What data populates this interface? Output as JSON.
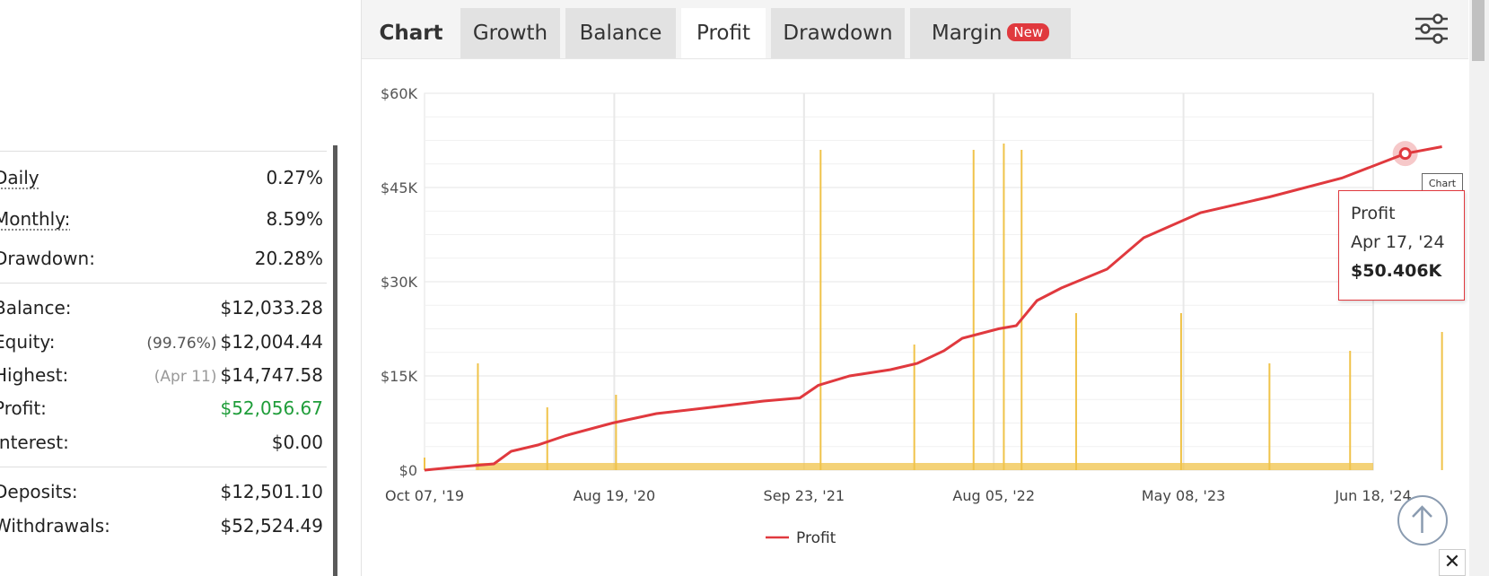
{
  "stats": {
    "rows": [
      {
        "label": "Daily",
        "value": "0.27%"
      },
      {
        "label": "Monthly:",
        "value": "8.59%"
      },
      {
        "label": "Drawdown:",
        "value": "20.28%"
      },
      {
        "label": "Balance:",
        "value": "$12,033.28"
      },
      {
        "label": "Equity:",
        "prefix": "(99.76%)",
        "value": "$12,004.44"
      },
      {
        "label": "Highest:",
        "prefix": "(Apr 11)",
        "value": "$14,747.58"
      },
      {
        "label": "Profit:",
        "value": "$52,056.67"
      },
      {
        "label": "Interest:",
        "value": "$0.00"
      },
      {
        "label": "Deposits:",
        "value": "$12,501.10"
      },
      {
        "label": "Withdrawals:",
        "value": "$52,524.49"
      }
    ],
    "profit_color": "#1f9d3a"
  },
  "tabs": {
    "chart": "Chart",
    "growth": "Growth",
    "balance": "Balance",
    "profit": "Profit",
    "drawdown": "Drawdown",
    "margin": "Margin",
    "margin_badge": "New",
    "active": "Profit"
  },
  "icons": {
    "settings": "sliders-icon",
    "scroll_top": "arrow-up-circle-icon",
    "close": "close-icon"
  },
  "close_glyph": "✕",
  "tooltip": {
    "series": "Profit",
    "date": "Apr 17, '24",
    "value": "$50.406K"
  },
  "mini_tooltip": "Chart",
  "chart_data": {
    "type": "line",
    "x_tick_labels": [
      "Oct 07, '19",
      "Aug 19, '20",
      "Sep 23, '21",
      "Aug 05, '22",
      "May 08, '23",
      "Jun 18, '24"
    ],
    "y_tick_labels": [
      "$0",
      "$15K",
      "$30K",
      "$45K",
      "$60K"
    ],
    "ylim": [
      0,
      60000
    ],
    "legend": [
      "Profit"
    ],
    "legend_placement": "bottom-center",
    "grid": true,
    "colors": {
      "profit_line": "#e0393e",
      "volume_bars": "#f0c34a"
    },
    "series": [
      {
        "name": "Profit",
        "x": [
          "2019-10-07",
          "2019-12-01",
          "2020-02-01",
          "2020-03-01",
          "2020-04-15",
          "2020-06-01",
          "2020-08-19",
          "2020-11-01",
          "2021-02-01",
          "2021-05-01",
          "2021-07-01",
          "2021-08-01",
          "2021-09-23",
          "2021-12-01",
          "2022-01-15",
          "2022-03-01",
          "2022-04-01",
          "2022-06-01",
          "2022-07-01",
          "2022-08-05",
          "2022-09-15",
          "2022-12-01",
          "2023-02-01",
          "2023-05-08",
          "2023-09-01",
          "2024-01-01",
          "2024-04-17",
          "2024-06-18"
        ],
        "y": [
          0,
          500,
          1000,
          3000,
          4000,
          5500,
          7500,
          9000,
          10000,
          11000,
          11500,
          13500,
          15000,
          16000,
          17000,
          19000,
          21000,
          22500,
          23000,
          27000,
          29000,
          32000,
          37000,
          41000,
          43500,
          46500,
          50406,
          51500
        ]
      },
      {
        "name": "",
        "type": "bar",
        "x": [
          "2019-10-07",
          "2020-01-05",
          "2020-05-01",
          "2020-08-25",
          "2021-08-05",
          "2022-01-10",
          "2022-04-20",
          "2022-06-10",
          "2022-07-10",
          "2022-10-10",
          "2023-04-05",
          "2023-09-01",
          "2024-01-15",
          "2024-06-18"
        ],
        "y": [
          2000,
          17000,
          10000,
          12000,
          51000,
          20000,
          51000,
          52000,
          51000,
          25000,
          25000,
          17000,
          19000,
          22000
        ]
      }
    ]
  }
}
